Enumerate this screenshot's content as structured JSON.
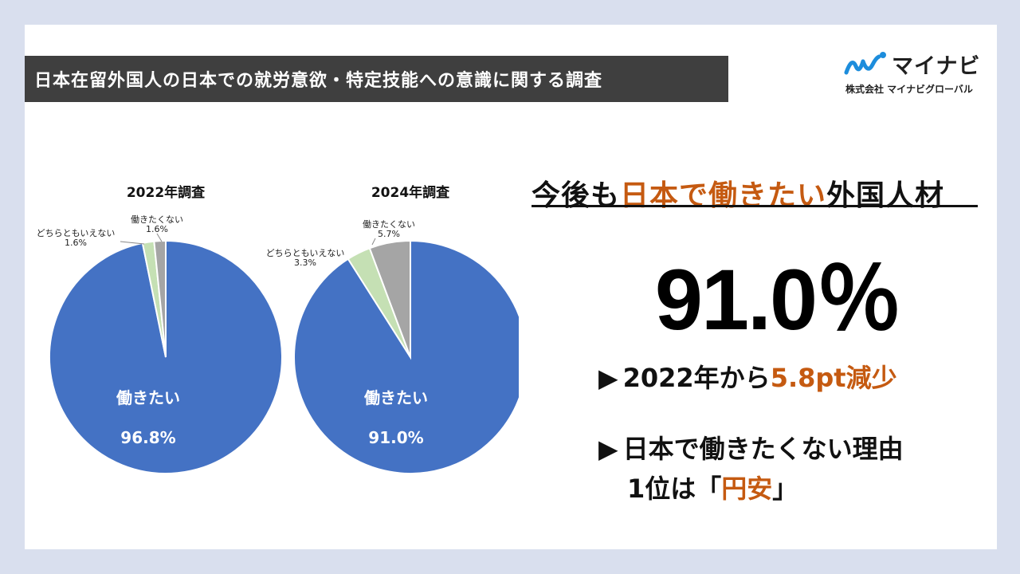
{
  "header": {
    "title": "日本在留外国人の日本での就労意欲・特定技能への意識に関する調査"
  },
  "logo": {
    "brand": "マイナビ",
    "company": "株式会社 マイナビグローバル",
    "brand_color": "#1d8ddc"
  },
  "headline": {
    "prefix": "今後も",
    "highlight": "日本で働きたい",
    "suffix": "外国人材"
  },
  "big_value": "91.0％",
  "points": [
    {
      "arrow": "▶",
      "text_before": "2022年から",
      "highlight": "5.8pt減少",
      "text_after": ""
    },
    {
      "arrow": "▶",
      "line1": "日本で働きたくない理由",
      "line2_before": "1位は「",
      "line2_highlight": "円安",
      "line2_after": "」"
    }
  ],
  "colors": {
    "want": "#4472c4",
    "neutral": "#c5e0b4",
    "not_want": "#a5a5a5",
    "accent": "#c55a11"
  },
  "chart_data": [
    {
      "type": "pie",
      "title": "2022年調査",
      "slices": [
        {
          "label": "働きたい",
          "value": 96.8,
          "display": "96.8%"
        },
        {
          "label": "どちらともいえない",
          "value": 1.6,
          "display": "1.6%"
        },
        {
          "label": "働きたくない",
          "value": 1.6,
          "display": "1.6%"
        }
      ]
    },
    {
      "type": "pie",
      "title": "2024年調査",
      "slices": [
        {
          "label": "働きたい",
          "value": 91.0,
          "display": "91.0%"
        },
        {
          "label": "どちらともいえない",
          "value": 3.3,
          "display": "3.3%"
        },
        {
          "label": "働きたくない",
          "value": 5.7,
          "display": "5.7%"
        }
      ]
    }
  ]
}
